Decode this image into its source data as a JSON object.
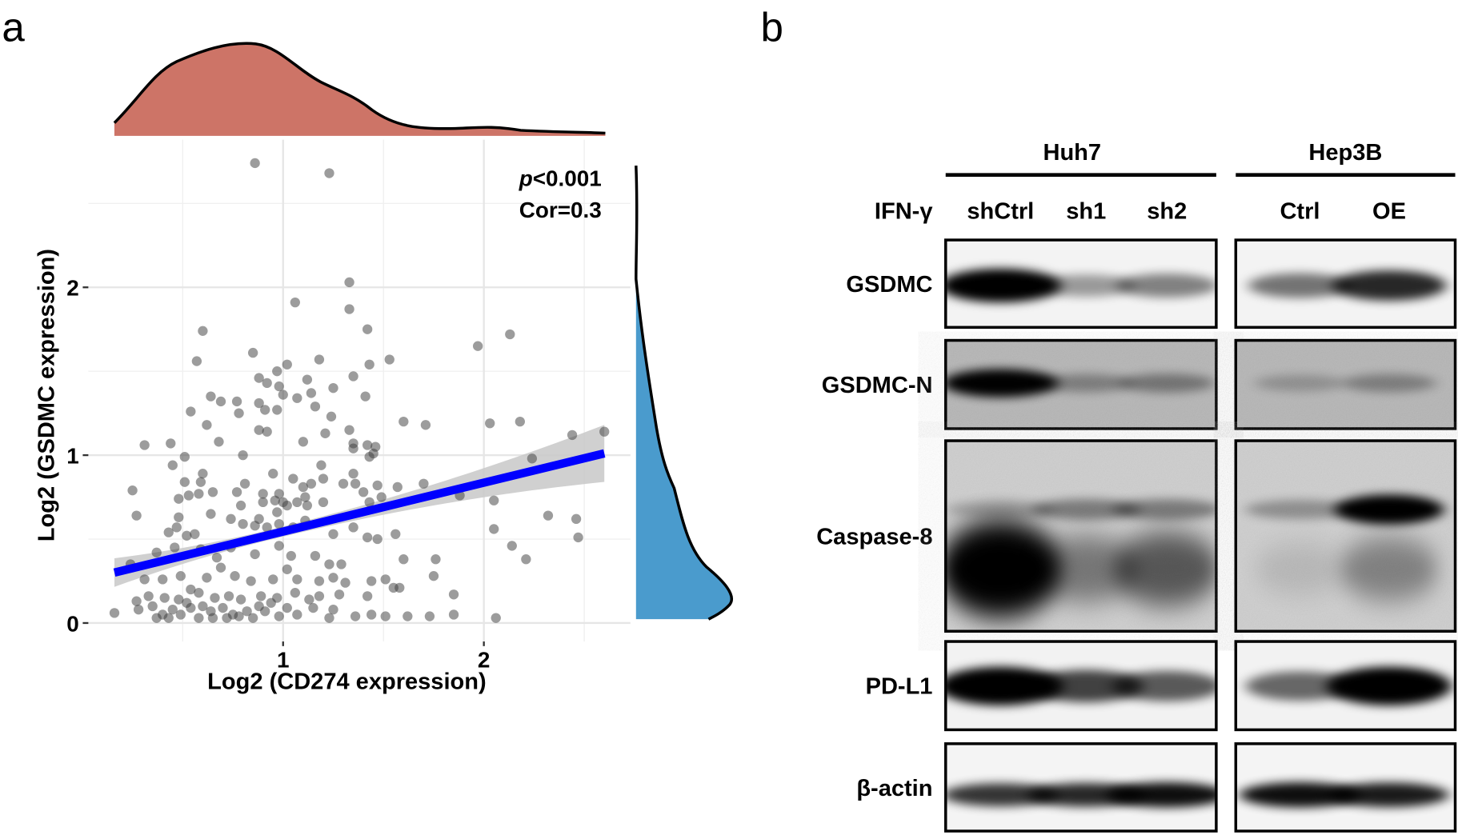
{
  "panel_a": {
    "letter": "a",
    "annotation_p": "p",
    "annotation_p_rest": "<0.001",
    "annotation_cor": "Cor=0.3",
    "colors": {
      "x_density": "#CD7467",
      "y_density": "#4A9BCD",
      "fit_line": "#0000FF",
      "ci_band": "#C8C8C8",
      "points": "#3a3a3a"
    }
  },
  "chart_data": {
    "type": "scatter",
    "title": "",
    "xlabel": "Log2 (CD274 expression)",
    "ylabel": "Log2 (GSDMC expression)",
    "xlim": [
      0.03,
      2.73
    ],
    "ylim": [
      -0.11,
      2.88
    ],
    "x_ticks": [
      {
        "v": 1,
        "label": "1"
      },
      {
        "v": 2,
        "label": "2"
      }
    ],
    "y_ticks": [
      {
        "v": 0,
        "label": "0"
      },
      {
        "v": 1,
        "label": "1"
      },
      {
        "v": 2,
        "label": "2"
      }
    ],
    "grid": true,
    "regression": {
      "slope": 0.291,
      "intercept": 0.254,
      "x_range": [
        0.16,
        2.6
      ],
      "ci_halfwidth_left": 0.085,
      "ci_halfwidth_min": 0.03,
      "ci_halfwidth_right": 0.17,
      "ci_center_x": 0.95
    },
    "stats": {
      "p": "<0.001",
      "cor": 0.3
    },
    "points": [
      [
        0.86,
        2.74
      ],
      [
        1.23,
        2.68
      ],
      [
        1.33,
        2.03
      ],
      [
        1.06,
        1.91
      ],
      [
        1.33,
        1.87
      ],
      [
        0.6,
        1.74
      ],
      [
        1.42,
        1.75
      ],
      [
        2.13,
        1.72
      ],
      [
        1.97,
        1.65
      ],
      [
        0.85,
        1.61
      ],
      [
        1.53,
        1.57
      ],
      [
        1.18,
        1.57
      ],
      [
        1.02,
        1.54
      ],
      [
        0.57,
        1.56
      ],
      [
        1.43,
        1.54
      ],
      [
        0.97,
        1.5
      ],
      [
        0.88,
        1.46
      ],
      [
        0.92,
        1.43
      ],
      [
        1.12,
        1.45
      ],
      [
        1.35,
        1.47
      ],
      [
        0.98,
        1.41
      ],
      [
        1.25,
        1.4
      ],
      [
        1.14,
        1.37
      ],
      [
        1.0,
        1.36
      ],
      [
        0.64,
        1.35
      ],
      [
        1.07,
        1.34
      ],
      [
        1.41,
        1.35
      ],
      [
        0.69,
        1.32
      ],
      [
        0.77,
        1.32
      ],
      [
        0.88,
        1.31
      ],
      [
        1.16,
        1.29
      ],
      [
        0.78,
        1.25
      ],
      [
        0.54,
        1.26
      ],
      [
        0.91,
        1.27
      ],
      [
        0.97,
        1.27
      ],
      [
        1.24,
        1.23
      ],
      [
        1.6,
        1.2
      ],
      [
        1.71,
        1.18
      ],
      [
        2.03,
        1.19
      ],
      [
        2.18,
        1.2
      ],
      [
        0.62,
        1.18
      ],
      [
        0.88,
        1.15
      ],
      [
        0.92,
        1.14
      ],
      [
        1.33,
        1.15
      ],
      [
        1.21,
        1.13
      ],
      [
        2.44,
        1.12
      ],
      [
        2.6,
        1.14
      ],
      [
        0.68,
        1.08
      ],
      [
        0.31,
        1.06
      ],
      [
        0.44,
        1.07
      ],
      [
        1.1,
        1.08
      ],
      [
        1.35,
        1.07
      ],
      [
        1.42,
        1.06
      ],
      [
        1.46,
        1.05
      ],
      [
        1.35,
        1.04
      ],
      [
        1.45,
        1.01
      ],
      [
        0.8,
        1.0
      ],
      [
        1.43,
        0.99
      ],
      [
        0.51,
        0.99
      ],
      [
        2.24,
        0.98
      ],
      [
        0.45,
        0.94
      ],
      [
        1.19,
        0.94
      ],
      [
        0.95,
        0.89
      ],
      [
        1.35,
        0.89
      ],
      [
        0.6,
        0.89
      ],
      [
        1.05,
        0.86
      ],
      [
        1.2,
        0.86
      ],
      [
        0.59,
        0.84
      ],
      [
        0.51,
        0.84
      ],
      [
        0.81,
        0.83
      ],
      [
        1.14,
        0.83
      ],
      [
        1.1,
        0.81
      ],
      [
        1.3,
        0.83
      ],
      [
        1.36,
        0.83
      ],
      [
        1.47,
        0.82
      ],
      [
        1.57,
        0.81
      ],
      [
        1.7,
        0.83
      ],
      [
        0.25,
        0.79
      ],
      [
        0.65,
        0.78
      ],
      [
        0.77,
        0.78
      ],
      [
        0.9,
        0.77
      ],
      [
        0.53,
        0.76
      ],
      [
        0.58,
        0.77
      ],
      [
        0.48,
        0.74
      ],
      [
        0.98,
        0.77
      ],
      [
        1.11,
        0.75
      ],
      [
        1.4,
        0.78
      ],
      [
        1.49,
        0.75
      ],
      [
        1.88,
        0.76
      ],
      [
        0.9,
        0.72
      ],
      [
        0.96,
        0.73
      ],
      [
        1.0,
        0.72
      ],
      [
        1.07,
        0.72
      ],
      [
        1.2,
        0.72
      ],
      [
        1.43,
        0.72
      ],
      [
        2.05,
        0.73
      ],
      [
        0.79,
        0.7
      ],
      [
        1.02,
        0.7
      ],
      [
        1.12,
        0.7
      ],
      [
        0.27,
        0.64
      ],
      [
        0.48,
        0.63
      ],
      [
        0.64,
        0.65
      ],
      [
        0.74,
        0.62
      ],
      [
        0.88,
        0.62
      ],
      [
        0.97,
        0.66
      ],
      [
        1.11,
        0.61
      ],
      [
        2.32,
        0.64
      ],
      [
        2.46,
        0.62
      ],
      [
        0.43,
        0.54
      ],
      [
        0.47,
        0.57
      ],
      [
        0.52,
        0.52
      ],
      [
        0.56,
        0.53
      ],
      [
        0.8,
        0.59
      ],
      [
        0.86,
        0.58
      ],
      [
        0.92,
        0.57
      ],
      [
        0.98,
        0.59
      ],
      [
        1.05,
        0.57
      ],
      [
        1.25,
        0.53
      ],
      [
        1.35,
        0.57
      ],
      [
        1.42,
        0.51
      ],
      [
        1.47,
        0.5
      ],
      [
        1.56,
        0.53
      ],
      [
        2.05,
        0.56
      ],
      [
        2.47,
        0.51
      ],
      [
        0.37,
        0.42
      ],
      [
        0.46,
        0.45
      ],
      [
        0.59,
        0.44
      ],
      [
        0.67,
        0.39
      ],
      [
        0.74,
        0.45
      ],
      [
        0.86,
        0.41
      ],
      [
        0.98,
        0.46
      ],
      [
        1.04,
        0.4
      ],
      [
        1.16,
        0.4
      ],
      [
        1.23,
        0.35
      ],
      [
        1.29,
        0.35
      ],
      [
        1.6,
        0.38
      ],
      [
        1.76,
        0.38
      ],
      [
        2.14,
        0.46
      ],
      [
        2.21,
        0.38
      ],
      [
        0.24,
        0.35
      ],
      [
        0.31,
        0.26
      ],
      [
        0.4,
        0.26
      ],
      [
        0.49,
        0.28
      ],
      [
        0.54,
        0.2
      ],
      [
        0.62,
        0.27
      ],
      [
        0.69,
        0.33
      ],
      [
        0.76,
        0.28
      ],
      [
        0.84,
        0.25
      ],
      [
        0.95,
        0.26
      ],
      [
        1.02,
        0.32
      ],
      [
        1.07,
        0.26
      ],
      [
        1.18,
        0.25
      ],
      [
        1.25,
        0.27
      ],
      [
        1.31,
        0.24
      ],
      [
        1.44,
        0.25
      ],
      [
        1.51,
        0.26
      ],
      [
        1.75,
        0.28
      ],
      [
        0.27,
        0.13
      ],
      [
        0.33,
        0.16
      ],
      [
        0.41,
        0.15
      ],
      [
        0.48,
        0.14
      ],
      [
        0.58,
        0.18
      ],
      [
        0.66,
        0.15
      ],
      [
        0.73,
        0.16
      ],
      [
        0.79,
        0.14
      ],
      [
        0.89,
        0.16
      ],
      [
        0.97,
        0.15
      ],
      [
        1.06,
        0.18
      ],
      [
        1.13,
        0.14
      ],
      [
        1.18,
        0.16
      ],
      [
        1.28,
        0.17
      ],
      [
        1.42,
        0.16
      ],
      [
        1.55,
        0.21
      ],
      [
        1.58,
        0.21
      ],
      [
        1.85,
        0.17
      ],
      [
        0.16,
        0.06
      ],
      [
        0.28,
        0.08
      ],
      [
        0.37,
        0.03
      ],
      [
        0.43,
        0.03
      ],
      [
        0.49,
        0.05
      ],
      [
        0.54,
        0.09
      ],
      [
        0.58,
        0.03
      ],
      [
        0.64,
        0.07
      ],
      [
        0.72,
        0.03
      ],
      [
        0.78,
        0.04
      ],
      [
        0.85,
        0.03
      ],
      [
        0.91,
        0.07
      ],
      [
        0.98,
        0.04
      ],
      [
        1.07,
        0.05
      ],
      [
        1.15,
        0.09
      ],
      [
        1.23,
        0.03
      ],
      [
        1.25,
        0.08
      ],
      [
        1.36,
        0.04
      ],
      [
        1.44,
        0.05
      ],
      [
        1.51,
        0.04
      ],
      [
        1.62,
        0.04
      ],
      [
        1.73,
        0.04
      ],
      [
        1.85,
        0.05
      ],
      [
        2.06,
        0.03
      ],
      [
        0.4,
        0.05
      ],
      [
        0.65,
        0.03
      ],
      [
        0.82,
        0.07
      ],
      [
        1.02,
        0.09
      ],
      [
        0.35,
        0.1
      ],
      [
        0.45,
        0.08
      ],
      [
        0.52,
        0.12
      ],
      [
        0.6,
        0.1
      ],
      [
        0.7,
        0.09
      ],
      [
        0.75,
        0.05
      ],
      [
        0.88,
        0.1
      ],
      [
        0.94,
        0.12
      ]
    ]
  },
  "panel_b": {
    "letter": "b",
    "groups": [
      {
        "name": "Huh7",
        "lanes": [
          "shCtrl",
          "sh1",
          "sh2"
        ]
      },
      {
        "name": "Hep3B",
        "lanes": [
          "Ctrl",
          "OE"
        ]
      }
    ],
    "treatment_label": "IFN-γ",
    "rows": [
      {
        "label": "GSDMC",
        "intensity": [
          [
            1.0,
            0.35,
            0.45
          ],
          [
            0.5,
            0.8
          ]
        ]
      },
      {
        "label": "GSDMC-N",
        "intensity": [
          [
            0.95,
            0.3,
            0.35
          ],
          [
            0.2,
            0.3
          ]
        ]
      },
      {
        "label": "Caspase-8",
        "intensity_upper": [
          [
            0.2,
            0.4,
            0.4
          ],
          [
            0.3,
            1.0
          ]
        ],
        "intensity": [
          [
            1.0,
            0.4,
            0.55
          ],
          [
            0.1,
            0.35
          ]
        ]
      },
      {
        "label": "PD-L1",
        "intensity": [
          [
            1.0,
            0.7,
            0.6
          ],
          [
            0.55,
            1.0
          ]
        ]
      },
      {
        "label": "β-actin",
        "intensity": [
          [
            0.75,
            0.8,
            0.9
          ],
          [
            0.9,
            0.85
          ]
        ]
      }
    ]
  }
}
